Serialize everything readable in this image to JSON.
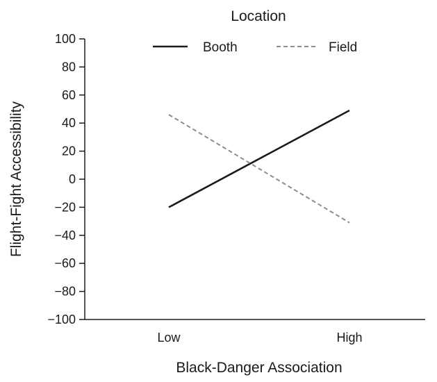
{
  "chart_data": {
    "type": "line",
    "title": "",
    "xlabel": "Black-Danger Association",
    "ylabel": "Flight-Fight Accessibility",
    "categories": [
      "Low",
      "High"
    ],
    "ylim": [
      -100,
      100
    ],
    "yticks": [
      100,
      80,
      60,
      40,
      20,
      0,
      -20,
      -40,
      -60,
      -80,
      -100
    ],
    "ytick_labels": [
      "100",
      "80",
      "60",
      "40",
      "20",
      "0",
      "−20",
      "−40",
      "−60",
      "−80",
      "−100"
    ],
    "grid": false,
    "legend": {
      "title": "Location",
      "placement": "top"
    },
    "series": [
      {
        "name": "Booth",
        "values": [
          -20,
          49
        ],
        "color": "#1a1a1a",
        "dash": "solid"
      },
      {
        "name": "Field",
        "values": [
          46,
          -31
        ],
        "color": "#8c8c8c",
        "dash": "dashed"
      }
    ]
  }
}
